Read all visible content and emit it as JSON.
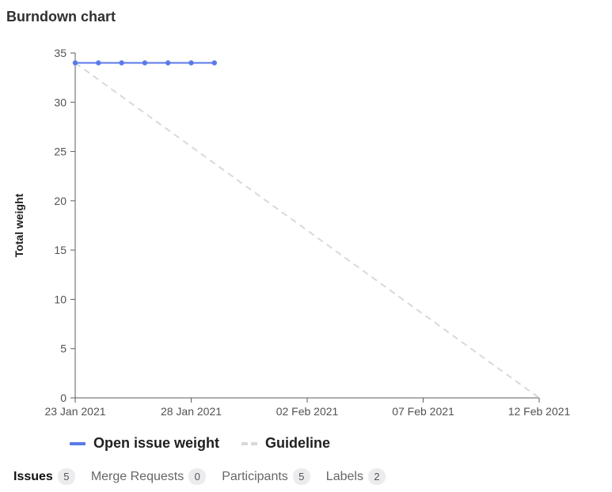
{
  "page": {
    "title": "Burndown chart"
  },
  "chart_data": {
    "type": "line",
    "title": "Burndown chart",
    "xlabel": "",
    "ylabel": "Total weight",
    "ylim": [
      0,
      35
    ],
    "yticks": [
      0,
      5,
      10,
      15,
      20,
      25,
      30,
      35
    ],
    "xlim": [
      "2021-01-23",
      "2021-02-12"
    ],
    "xticks": [
      "23 Jan 2021",
      "28 Jan 2021",
      "02 Feb 2021",
      "07 Feb 2021",
      "12 Feb 2021"
    ],
    "xtick_dates": [
      "2021-01-23",
      "2021-01-28",
      "2021-02-02",
      "2021-02-07",
      "2021-02-12"
    ],
    "grid": false,
    "legend_position": "bottom-left",
    "series": [
      {
        "name": "Open issue weight",
        "style": "solid",
        "color": "#5b79eb",
        "markers": true,
        "points": [
          {
            "x": "2021-01-23",
            "y": 34
          },
          {
            "x": "2021-01-24",
            "y": 34
          },
          {
            "x": "2021-01-25",
            "y": 34
          },
          {
            "x": "2021-01-26",
            "y": 34
          },
          {
            "x": "2021-01-27",
            "y": 34
          },
          {
            "x": "2021-01-28",
            "y": 34
          },
          {
            "x": "2021-01-29",
            "y": 34
          }
        ]
      },
      {
        "name": "Guideline",
        "style": "dashed",
        "color": "#d9d9d9",
        "markers": false,
        "points": [
          {
            "x": "2021-01-23",
            "y": 34
          },
          {
            "x": "2021-02-12",
            "y": 0
          }
        ]
      }
    ]
  },
  "legend": {
    "items": [
      {
        "label": "Open issue weight"
      },
      {
        "label": "Guideline"
      }
    ]
  },
  "tabs": [
    {
      "label": "Issues",
      "count": "5",
      "active": true
    },
    {
      "label": "Merge Requests",
      "count": "0",
      "active": false
    },
    {
      "label": "Participants",
      "count": "5",
      "active": false
    },
    {
      "label": "Labels",
      "count": "2",
      "active": false
    }
  ]
}
